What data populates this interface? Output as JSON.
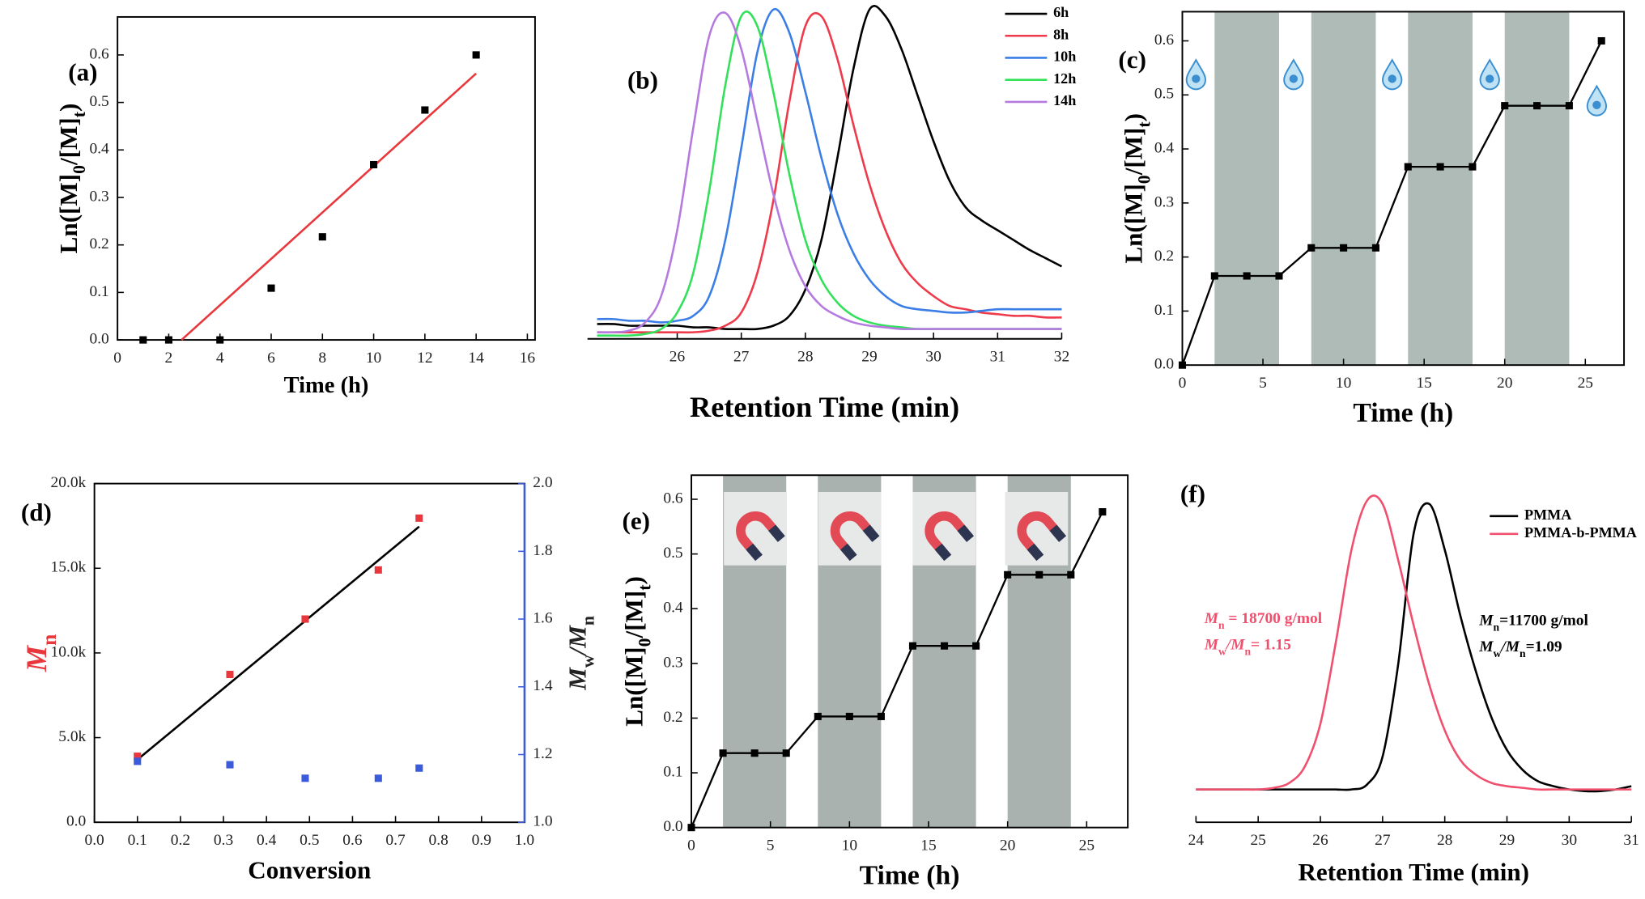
{
  "chart_data": [
    {
      "type": "scatter",
      "label": "(a)",
      "xlabel": "Time (h)",
      "ylabel": [
        "Ln([M]",
        "0",
        "/[M]",
        "t",
        ")"
      ],
      "x": [
        1,
        2,
        4,
        6,
        8,
        10,
        12,
        14
      ],
      "values": [
        0,
        0,
        0,
        0.109,
        0.217,
        0.369,
        0.484,
        0.6
      ],
      "color": "#000000",
      "fit": {
        "x": [
          2.5,
          14
        ],
        "values": [
          0,
          0.561
        ],
        "color": "#e8383d"
      },
      "xlim": [
        0,
        16.3
      ],
      "xticks": [
        0,
        2,
        4,
        6,
        8,
        10,
        12,
        14,
        16
      ],
      "ylim": [
        0,
        0.68
      ],
      "yticks": [
        {
          "value": 0,
          "label": "0.0"
        },
        0.1,
        0.2,
        0.3,
        0.4,
        0.5,
        0.6
      ],
      "frame": true
    },
    {
      "type": "line",
      "label": "(b)",
      "xlabel": "Retention Time (min)",
      "smooth": true,
      "frame": false,
      "legend": "upper right",
      "x": [
        24.75,
        25,
        25.25,
        25.5,
        25.75,
        26,
        26.25,
        26.5,
        26.75,
        27,
        27.25,
        27.5,
        27.75,
        28,
        28.25,
        28.5,
        28.75,
        29,
        29.25,
        29.5,
        29.75,
        30,
        30.25,
        30.5,
        30.75,
        31,
        31.25,
        31.5,
        31.75,
        32
      ],
      "series": [
        {
          "name": "6h",
          "color": "#000000",
          "values": [
            0.045,
            0.045,
            0.04,
            0.04,
            0.04,
            0.04,
            0.035,
            0.035,
            0.03,
            0.03,
            0.03,
            0.04,
            0.07,
            0.15,
            0.3,
            0.55,
            0.82,
            1.0,
            0.98,
            0.88,
            0.74,
            0.6,
            0.48,
            0.4,
            0.36,
            0.33,
            0.3,
            0.27,
            0.245,
            0.22
          ]
        },
        {
          "name": "8h",
          "color": "#ee3a4a",
          "values": [
            0.02,
            0.02,
            0.02,
            0.02,
            0.02,
            0.02,
            0.02,
            0.025,
            0.04,
            0.08,
            0.2,
            0.42,
            0.72,
            0.95,
            0.98,
            0.85,
            0.65,
            0.47,
            0.33,
            0.23,
            0.17,
            0.13,
            0.1,
            0.09,
            0.08,
            0.075,
            0.07,
            0.07,
            0.065,
            0.065
          ]
        },
        {
          "name": "10h",
          "color": "#3a7ee6",
          "values": [
            0.06,
            0.06,
            0.055,
            0.055,
            0.05,
            0.055,
            0.07,
            0.13,
            0.3,
            0.58,
            0.87,
            1.0,
            0.93,
            0.75,
            0.55,
            0.38,
            0.26,
            0.18,
            0.13,
            0.1,
            0.09,
            0.085,
            0.08,
            0.08,
            0.085,
            0.09,
            0.09,
            0.09,
            0.09,
            0.09
          ]
        },
        {
          "name": "12h",
          "color": "#33e05a",
          "values": [
            0.01,
            0.01,
            0.01,
            0.015,
            0.03,
            0.08,
            0.2,
            0.45,
            0.77,
            0.98,
            0.95,
            0.75,
            0.5,
            0.3,
            0.18,
            0.11,
            0.07,
            0.05,
            0.04,
            0.035,
            0.03,
            0.03,
            0.03,
            0.03,
            0.03,
            0.03,
            0.03,
            0.03,
            0.03,
            0.03
          ]
        },
        {
          "name": "14h",
          "color": "#b57ae0",
          "values": [
            0.02,
            0.02,
            0.025,
            0.05,
            0.13,
            0.33,
            0.64,
            0.92,
            0.99,
            0.88,
            0.66,
            0.44,
            0.27,
            0.16,
            0.1,
            0.07,
            0.05,
            0.04,
            0.035,
            0.03,
            0.03,
            0.03,
            0.03,
            0.03,
            0.03,
            0.03,
            0.03,
            0.03,
            0.03,
            0.03
          ]
        }
      ],
      "xlim": [
        24.6,
        32
      ],
      "xticks": [
        26,
        27,
        28,
        29,
        30,
        31,
        32
      ],
      "ylim": [
        0,
        1
      ]
    },
    {
      "type": "line",
      "label": "(c)",
      "xlabel": "Time (h)",
      "ylabel": [
        "Ln([M]",
        "0",
        "/[M]",
        "t",
        ")"
      ],
      "markers": true,
      "frame": true,
      "x": [
        0,
        2,
        4,
        6,
        8,
        10,
        12,
        14,
        16,
        18,
        20,
        22,
        24,
        26
      ],
      "values": [
        0,
        0.165,
        0.165,
        0.165,
        0.217,
        0.217,
        0.217,
        0.367,
        0.367,
        0.367,
        0.48,
        0.48,
        0.48,
        0.6
      ],
      "color": "#000000",
      "bands": [
        [
          2,
          6
        ],
        [
          8,
          12
        ],
        [
          14,
          18
        ],
        [
          20,
          24
        ]
      ],
      "band_color": "#aebbb6",
      "xlim": [
        0,
        27.4
      ],
      "xticks": [
        0,
        5,
        10,
        15,
        20,
        25
      ],
      "ylim": [
        0,
        0.654
      ],
      "yticks": [
        {
          "value": 0,
          "label": "0.0"
        },
        0.1,
        0.2,
        0.3,
        0.4,
        0.5,
        0.6
      ]
    },
    {
      "type": "scatter",
      "label": "(d)",
      "xlabel": "Conversion",
      "ylabel": [
        "M",
        "n"
      ],
      "y2label": [
        "M",
        "w",
        "/M",
        "n"
      ],
      "frame": true,
      "x": [
        0.1,
        0.315,
        0.49,
        0.66,
        0.755
      ],
      "series": [
        {
          "name": "Mn",
          "color": "#e8383d",
          "values": [
            3900,
            8730,
            12000,
            14900,
            17960
          ]
        },
        {
          "name": "Mw/Mn",
          "color": "#3b5bdb",
          "axis": "y2",
          "values": [
            1.18,
            1.17,
            1.13,
            1.13,
            1.16
          ]
        }
      ],
      "fit": {
        "x": [
          0.1,
          0.755
        ],
        "values": [
          3700,
          17460
        ],
        "color": "#000000"
      },
      "xlim": [
        0,
        1
      ],
      "xticks": [
        {
          "value": 0,
          "label": "0.0"
        },
        0.1,
        0.2,
        0.3,
        0.4,
        0.5,
        0.6,
        0.7,
        0.8,
        0.9,
        {
          "value": 1,
          "label": "1.0"
        }
      ],
      "ylim": [
        0,
        20000
      ],
      "yticks": [
        {
          "value": 0,
          "label": "0.0"
        },
        {
          "value": 5000,
          "label": "5.0k"
        },
        {
          "value": 10000,
          "label": "10.0k"
        },
        {
          "value": 15000,
          "label": "15.0k"
        },
        {
          "value": 20000,
          "label": "20.0k"
        }
      ],
      "y2lim": [
        1,
        2
      ],
      "y2ticks": [
        {
          "value": 1,
          "label": "1.0"
        },
        1.2,
        1.4,
        1.6,
        1.8,
        {
          "value": 2,
          "label": "2.0"
        }
      ]
    },
    {
      "type": "line",
      "label": "(e)",
      "xlabel": "Time (h)",
      "ylabel": [
        "Ln([M]",
        "0",
        "/[M]",
        "t",
        ")"
      ],
      "markers": true,
      "frame": true,
      "x": [
        0,
        2,
        4,
        6,
        8,
        10,
        12,
        14,
        16,
        18,
        20,
        22,
        24,
        26
      ],
      "values": [
        0,
        0.136,
        0.136,
        0.136,
        0.203,
        0.203,
        0.203,
        0.332,
        0.332,
        0.332,
        0.462,
        0.462,
        0.462,
        0.577
      ],
      "color": "#000000",
      "bands": [
        [
          2,
          6
        ],
        [
          8,
          12
        ],
        [
          14,
          18
        ],
        [
          20,
          24
        ]
      ],
      "band_color": "#a9b2ae",
      "xlim": [
        0,
        27.6
      ],
      "xticks": [
        0,
        5,
        10,
        15,
        20,
        25
      ],
      "ylim": [
        0,
        0.644
      ],
      "yticks": [
        {
          "value": 0,
          "label": "0.0"
        },
        0.1,
        0.2,
        0.3,
        0.4,
        0.5,
        0.6
      ]
    },
    {
      "type": "line",
      "label": "(f)",
      "xlabel": "Retention Time (min)",
      "smooth": true,
      "frame": false,
      "legend": "upper right",
      "x": [
        24,
        24.25,
        24.5,
        24.75,
        25,
        25.25,
        25.5,
        25.75,
        26,
        26.25,
        26.5,
        26.75,
        27,
        27.25,
        27.5,
        27.75,
        28,
        28.25,
        28.5,
        28.75,
        29,
        29.25,
        29.5,
        29.75,
        30,
        30.25,
        30.5,
        30.75,
        31
      ],
      "series": [
        {
          "name": "PMMA",
          "color": "#000000",
          "values": [
            0.1,
            0.1,
            0.1,
            0.1,
            0.1,
            0.1,
            0.1,
            0.1,
            0.1,
            0.1,
            0.1,
            0.115,
            0.2,
            0.48,
            0.88,
            0.97,
            0.83,
            0.63,
            0.46,
            0.32,
            0.22,
            0.16,
            0.125,
            0.11,
            0.1,
            0.095,
            0.095,
            0.1,
            0.11
          ]
        },
        {
          "name": "PMMA-b-PMMA",
          "color": "#f0506e",
          "values": [
            0.1,
            0.1,
            0.1,
            0.1,
            0.1,
            0.105,
            0.12,
            0.17,
            0.3,
            0.55,
            0.83,
            0.98,
            0.97,
            0.8,
            0.6,
            0.42,
            0.28,
            0.19,
            0.145,
            0.12,
            0.11,
            0.105,
            0.1,
            0.1,
            0.1,
            0.1,
            0.1,
            0.1,
            0.1
          ]
        }
      ],
      "annotations": [
        {
          "color": "#f0506e",
          "lines": [
            [
              "M",
              "n",
              " = 18700 g/mol"
            ],
            [
              "M",
              "w",
              "/M",
              "n",
              "= 1.15"
            ]
          ]
        },
        {
          "color": "#000000",
          "lines": [
            [
              "M",
              "n",
              "=11700 g/mol"
            ],
            [
              "M",
              "w",
              "/M",
              "n",
              "=1.09"
            ]
          ]
        }
      ],
      "xlim": [
        24,
        31
      ],
      "xticks": [
        24,
        25,
        26,
        27,
        28,
        29,
        30,
        31
      ],
      "ylim": [
        0,
        1
      ]
    }
  ]
}
